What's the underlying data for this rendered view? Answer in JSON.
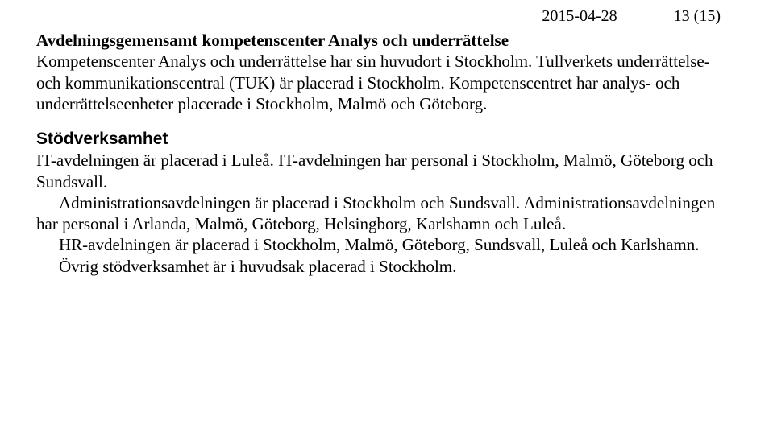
{
  "header": {
    "date": "2015-04-28",
    "pagination": "13 (15)"
  },
  "section1": {
    "title": "Avdelningsgemensamt kompetenscenter Analys och underrättelse",
    "p1": "Kompetenscenter Analys och underrättelse har sin huvudort i Stockholm. Tullverkets underrättelse- och kommunikationscentral (TUK) är placerad i Stockholm. Kompetenscentret har analys- och underrättelseenheter placerade i Stockholm, Malmö och Göteborg."
  },
  "section2": {
    "title": "Stödverksamhet",
    "p1": "IT-avdelningen är placerad i Luleå. IT-avdelningen har personal i Stockholm, Malmö, Göteborg och Sundsvall.",
    "p2": "Administrationsavdelningen är placerad i Stockholm och Sundsvall. Administrationsavdelningen har personal i Arlanda, Malmö, Göteborg, Helsingborg, Karlshamn och Luleå.",
    "p3": "HR-avdelningen är placerad i Stockholm, Malmö, Göteborg, Sundsvall, Luleå och Karlshamn.",
    "p4": "Övrig stödverksamhet är i huvudsak placerad i Stockholm."
  }
}
